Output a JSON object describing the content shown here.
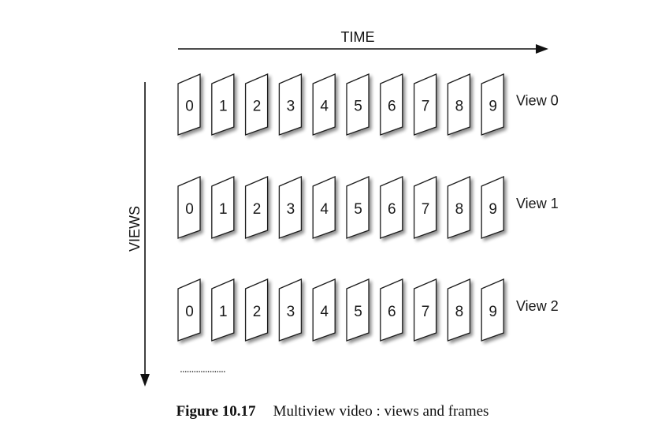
{
  "axes": {
    "time_label": "TIME",
    "views_label": "VIEWS"
  },
  "frames": [
    "0",
    "1",
    "2",
    "3",
    "4",
    "5",
    "6",
    "7",
    "8",
    "9"
  ],
  "views": [
    {
      "label": "View 0"
    },
    {
      "label": "View 1"
    },
    {
      "label": "View 2"
    }
  ],
  "continuation": "....................",
  "caption": {
    "label": "Figure 10.17",
    "text": "Multiview video : views and frames"
  }
}
